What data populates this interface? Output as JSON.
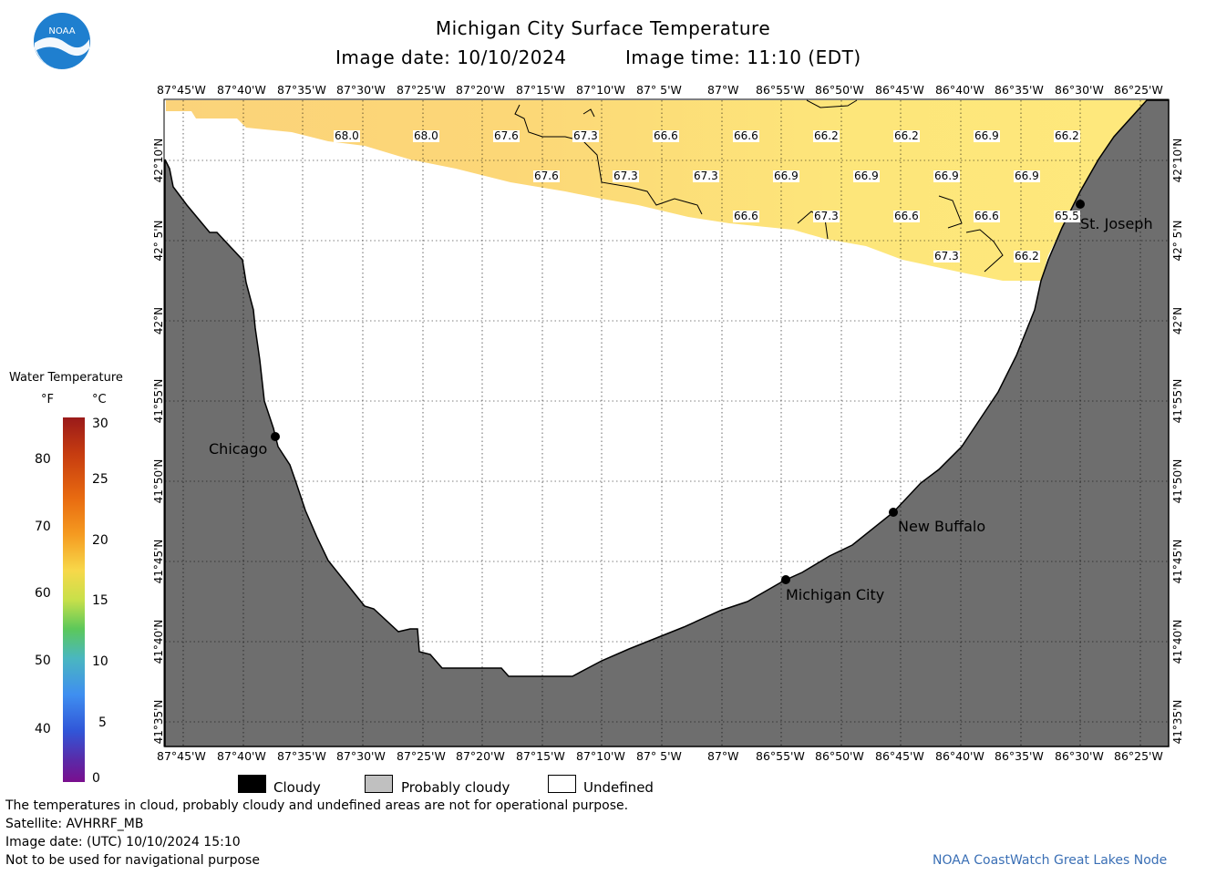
{
  "header": {
    "title": "Michigan City Surface Temperature",
    "image_date": "Image date: 10/10/2024",
    "image_time": "Image time: 11:10 (EDT)"
  },
  "logo": {
    "text": "NOAA"
  },
  "lon_labels": [
    "87°45'W",
    "87°40'W",
    "87°35'W",
    "87°30'W",
    "87°25'W",
    "87°20'W",
    "87°15'W",
    "87°10'W",
    "87° 5'W",
    "87°W",
    "86°55'W",
    "86°50'W",
    "86°45'W",
    "86°40'W",
    "86°35'W",
    "86°30'W",
    "86°25'W"
  ],
  "lat_labels": [
    "42°10'N",
    "42° 5'N",
    "42°N",
    "41°55'N",
    "41°50'N",
    "41°45'N",
    "41°40'N",
    "41°35'N"
  ],
  "sst_values": [
    "68.0",
    "68.0",
    "67.6",
    "67.3",
    "66.6",
    "66.6",
    "66.2",
    "66.2",
    "66.9",
    "66.2",
    "67.6",
    "67.3",
    "67.3",
    "66.9",
    "66.9",
    "66.9",
    "66.9",
    "66.6",
    "67.3",
    "66.6",
    "66.6",
    "65.5",
    "67.3",
    "66.2"
  ],
  "cities": {
    "chicago": "Chicago",
    "michigan_city": "Michigan City",
    "new_buffalo": "New Buffalo",
    "st_joseph": "St. Joseph"
  },
  "colorbar": {
    "title": "Water Temperature",
    "unit_f": "°F",
    "unit_c": "°C",
    "f_ticks": [
      "80",
      "70",
      "60",
      "50",
      "40"
    ],
    "c_ticks": [
      "30",
      "25",
      "20",
      "15",
      "10",
      "5",
      "0"
    ]
  },
  "legend": {
    "cloudy": "Cloudy",
    "probably_cloudy": "Probably cloudy",
    "undefined": "Undefined",
    "colors": {
      "cloudy": "#000000",
      "probably_cloudy": "#c0c0c0",
      "undefined": "#ffffff"
    }
  },
  "footer": {
    "disclaimer": "The temperatures in cloud, probably cloudy and undefined areas are not for operational purpose.",
    "satellite": "Satellite: AVHRRF_MB",
    "utc_date": "Image date: (UTC) 10/10/2024  15:10",
    "nav_warning": "Not to be used for navigational purpose",
    "credit": "NOAA CoastWatch Great Lakes Node"
  },
  "colors": {
    "land": "#6e6e6e",
    "water_sst": "#fde07a",
    "credit": "#3a6fb5",
    "logo": "#1f7fcf"
  }
}
